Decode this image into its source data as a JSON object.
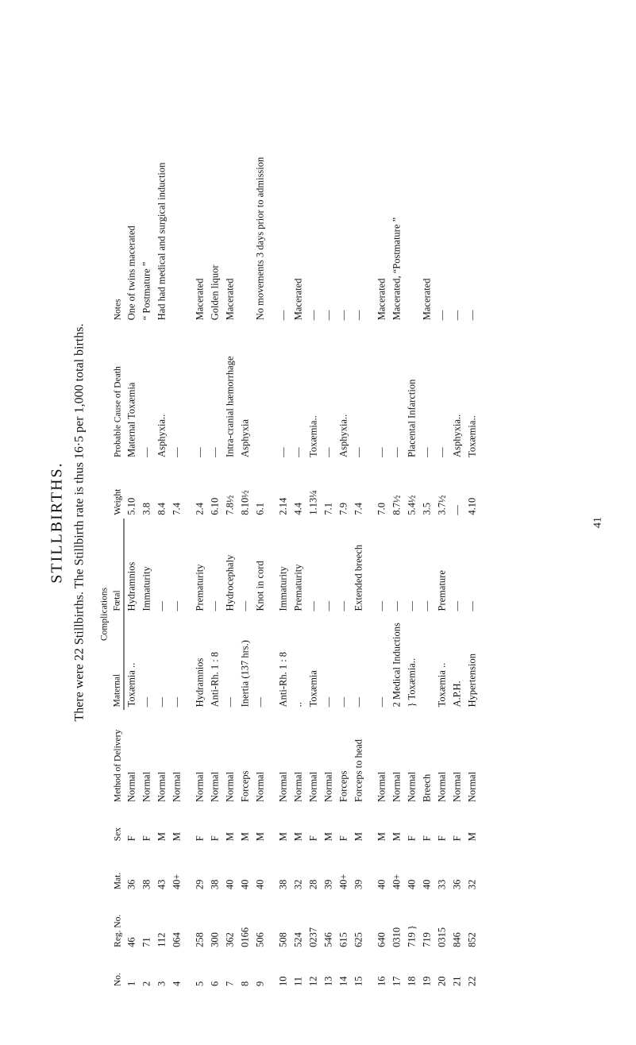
{
  "page": {
    "title_main": "STILLBIRTHS.",
    "title_sub": "There were 22 Stillbirths.  The Stillbirth rate is thus 16·5 per 1,000 total births.",
    "foot_number": "41"
  },
  "headers": {
    "no": "No.",
    "reg": "Reg. No.",
    "mat": "Mat.",
    "sex": "Sex",
    "method": "Method of Delivery",
    "complications_top": "Complications",
    "comp_maternal": "Maternal",
    "comp_foetal": "Fœtal",
    "weight": "Weight",
    "cause": "Probable Cause of Death",
    "notes": "Notes"
  },
  "rows": [
    {
      "no": "1",
      "reg": "46",
      "mat": "36",
      "sex": "F",
      "method": "Normal",
      "cmat": "Toxæmia ..",
      "cfoet": "Hydramnios",
      "wt": "5.10",
      "cause": "Maternal Toxæmia",
      "notes": "One of twins macerated"
    },
    {
      "no": "2",
      "reg": "71",
      "mat": "38",
      "sex": "F",
      "method": "Normal",
      "cmat": "—",
      "cfoet": "Immaturity",
      "wt": "3.8",
      "cause": "—",
      "notes": "“ Postmature ”"
    },
    {
      "no": "3",
      "reg": "112",
      "mat": "43",
      "sex": "M",
      "method": "Normal",
      "cmat": "—",
      "cfoet": "—",
      "wt": "8.4",
      "cause": "Asphyxia..",
      "notes": "Had had medical and surgical induction"
    },
    {
      "no": "4",
      "reg": "064",
      "mat": "40+",
      "sex": "M",
      "method": "Normal",
      "cmat": "—",
      "cfoet": "—",
      "wt": "7.4",
      "cause": "—",
      "notes": ""
    },
    {
      "no": "5",
      "reg": "258",
      "mat": "29",
      "sex": "F",
      "method": "Normal",
      "cmat": "Hydramnios",
      "cfoet": "Prematurity",
      "wt": "2.4",
      "cause": "—",
      "notes": "Macerated"
    },
    {
      "no": "6",
      "reg": "300",
      "mat": "38",
      "sex": "F",
      "method": "Normal",
      "cmat": "Anti-Rh. 1 : 8",
      "cfoet": "—",
      "wt": "6.10",
      "cause": "—",
      "notes": "Golden liquor"
    },
    {
      "no": "7",
      "reg": "362",
      "mat": "40",
      "sex": "M",
      "method": "Normal",
      "cmat": "—",
      "cfoet": "Hydrocephaly",
      "wt": "7.8½",
      "cause": "Intra-cranial hæmorrhage",
      "notes": "Macerated"
    },
    {
      "no": "8",
      "reg": "0166",
      "mat": "40",
      "sex": "M",
      "method": "Forceps",
      "cmat": "Inertia (137 hrs.)",
      "cfoet": "—",
      "wt": "8.10½",
      "cause": "Asphyxia",
      "notes": ""
    },
    {
      "no": "9",
      "reg": "506",
      "mat": "40",
      "sex": "M",
      "method": "Normal",
      "cmat": "—",
      "cfoet": "Knot in cord",
      "wt": "6.1",
      "cause": "",
      "notes": "No movements 3 days prior to admission"
    },
    {
      "no": "10",
      "reg": "508",
      "mat": "38",
      "sex": "M",
      "method": "Normal",
      "cmat": "Anti-Rh. 1 : 8",
      "cfoet": "Immaturity",
      "wt": "2.14",
      "cause": "—",
      "notes": "—"
    },
    {
      "no": "11",
      "reg": "524",
      "mat": "32",
      "sex": "M",
      "method": "Normal",
      "cmat": "..",
      "cfoet": "Prematurity",
      "wt": "4.4",
      "cause": "—",
      "notes": "Macerated"
    },
    {
      "no": "12",
      "reg": "0237",
      "mat": "28",
      "sex": "F",
      "method": "Normal",
      "cmat": "Toxæmia",
      "cfoet": "—",
      "wt": "1.13¼",
      "cause": "Toxæmia..",
      "notes": "—"
    },
    {
      "no": "13",
      "reg": "546",
      "mat": "39",
      "sex": "M",
      "method": "Normal",
      "cmat": "—",
      "cfoet": "—",
      "wt": "7.1",
      "cause": "—",
      "notes": "—"
    },
    {
      "no": "14",
      "reg": "615",
      "mat": "40+",
      "sex": "F",
      "method": "Forceps",
      "cmat": "—",
      "cfoet": "—",
      "wt": "7.9",
      "cause": "Asphyxia..",
      "notes": "—"
    },
    {
      "no": "15",
      "reg": "625",
      "mat": "39",
      "sex": "M",
      "method": "Forceps to head",
      "cmat": "—",
      "cfoet": "Extended breech",
      "wt": "7.4",
      "cause": "—",
      "notes": "—"
    },
    {
      "no": "16",
      "reg": "640",
      "mat": "40",
      "sex": "M",
      "method": "Normal",
      "cmat": "—",
      "cfoet": "—",
      "wt": "7.0",
      "cause": "—",
      "notes": "Macerated"
    },
    {
      "no": "17",
      "reg": "0310",
      "mat": "40+",
      "sex": "M",
      "method": "Normal",
      "cmat": "2 Medical Inductions",
      "cfoet": "—",
      "wt": "8.7½",
      "cause": "—",
      "notes": "Macerated, “Postmature ”"
    },
    {
      "no": "18",
      "reg": "719 }",
      "mat": "40",
      "sex": "F",
      "method": "Normal",
      "cmat": "} Toxæmia..",
      "cfoet": "—",
      "wt": "5.4½",
      "cause": "Placental Infarction",
      "notes": ""
    },
    {
      "no": "19",
      "reg": "719",
      "mat": "40",
      "sex": "F",
      "method": "Breech",
      "cmat": "",
      "cfoet": "—",
      "wt": "3.5",
      "cause": "—",
      "notes": "Macerated"
    },
    {
      "no": "20",
      "reg": "0315",
      "mat": "33",
      "sex": "F",
      "method": "Normal",
      "cmat": "Toxæmia ..",
      "cfoet": "Premature",
      "wt": "3.7½",
      "cause": "—",
      "notes": "—"
    },
    {
      "no": "21",
      "reg": "846",
      "mat": "36",
      "sex": "F",
      "method": "Normal",
      "cmat": "A.P.H.",
      "cfoet": "—",
      "wt": "—",
      "cause": "Asphyxia..",
      "notes": "—"
    },
    {
      "no": "22",
      "reg": "852",
      "mat": "32",
      "sex": "M",
      "method": "Normal",
      "cmat": "Hypertension",
      "cfoet": "—",
      "wt": "4.10",
      "cause": "Toxæmia..",
      "notes": "—"
    }
  ],
  "group_breaks_after": [
    "4",
    "9",
    "15"
  ],
  "style": {
    "background": "#ffffff",
    "ink": "#111111",
    "font_family": "Times New Roman, serif",
    "title_main_size_pt": 15,
    "title_sub_size_pt": 12,
    "body_size_pt": 9.5,
    "rule_color": "#000000"
  }
}
